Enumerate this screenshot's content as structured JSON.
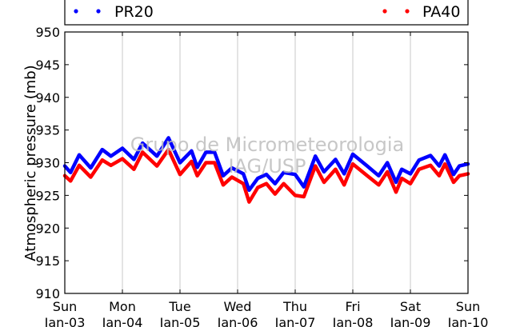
{
  "chart_data": {
    "type": "line",
    "ylabel": "Atmospheric pressure (mb)",
    "ylim": [
      910,
      950
    ],
    "yticks": [
      910,
      915,
      920,
      925,
      930,
      935,
      940,
      945,
      950
    ],
    "x_dates": [
      "Jan-03",
      "Jan-04",
      "Jan-05",
      "Jan-06",
      "Jan-07",
      "Jan-08",
      "Jan-09",
      "Jan-10"
    ],
    "x_labels_top": [
      "Sun",
      "Mon",
      "Tue",
      "Wed",
      "Thu",
      "Fri",
      "Sat",
      "Sun"
    ],
    "x_labels_bottom": [
      "Jan-03",
      "Jan-04",
      "Jan-05",
      "Jan-06",
      "Jan-07",
      "Jan-08",
      "Jan-09",
      "Jan-10"
    ],
    "grid": "vertical",
    "legend_placement": "top",
    "watermark": [
      "Grupo de Micrometeorologia",
      "IAG/USP"
    ],
    "series": [
      {
        "name": "PR20",
        "color": "#0000ff",
        "x": [
          0,
          0.1,
          0.25,
          0.45,
          0.65,
          0.8,
          1.0,
          1.2,
          1.35,
          1.6,
          1.8,
          2.0,
          2.2,
          2.3,
          2.45,
          2.6,
          2.75,
          2.9,
          3.1,
          3.2,
          3.35,
          3.5,
          3.65,
          3.8,
          4.0,
          4.15,
          4.35,
          4.5,
          4.7,
          4.85,
          5.0,
          5.25,
          5.45,
          5.6,
          5.75,
          5.85,
          6.0,
          6.15,
          6.35,
          6.5,
          6.6,
          6.75,
          6.85,
          7.0
        ],
        "y": [
          929.5,
          928.5,
          931.2,
          929.2,
          932.0,
          931.0,
          932.2,
          930.5,
          933.0,
          931.0,
          933.8,
          930.0,
          931.8,
          929.3,
          931.6,
          931.6,
          928.0,
          929.2,
          928.3,
          925.8,
          927.6,
          928.2,
          926.8,
          928.5,
          928.2,
          926.3,
          931.0,
          928.6,
          930.5,
          928.3,
          931.3,
          929.5,
          928.0,
          930.0,
          927.0,
          929.0,
          928.3,
          930.4,
          931.1,
          929.5,
          931.2,
          928.2,
          929.5,
          929.8
        ]
      },
      {
        "name": "PA40",
        "color": "#ff0000",
        "x": [
          0,
          0.1,
          0.25,
          0.45,
          0.65,
          0.8,
          1.0,
          1.2,
          1.35,
          1.6,
          1.8,
          2.0,
          2.2,
          2.3,
          2.45,
          2.6,
          2.75,
          2.9,
          3.1,
          3.2,
          3.35,
          3.5,
          3.65,
          3.8,
          4.0,
          4.15,
          4.35,
          4.5,
          4.7,
          4.85,
          5.0,
          5.25,
          5.45,
          5.6,
          5.75,
          5.85,
          6.0,
          6.15,
          6.35,
          6.5,
          6.6,
          6.75,
          6.85,
          7.0
        ],
        "y": [
          928.0,
          927.2,
          929.6,
          927.8,
          930.4,
          929.6,
          930.6,
          929.0,
          931.6,
          929.5,
          932.0,
          928.2,
          930.2,
          928.0,
          930.0,
          930.0,
          926.6,
          927.8,
          926.8,
          924.0,
          926.2,
          926.8,
          925.2,
          926.8,
          925.0,
          924.8,
          929.5,
          927.0,
          929.0,
          926.6,
          929.8,
          928.0,
          926.6,
          928.6,
          925.5,
          927.6,
          926.8,
          929.0,
          929.6,
          928.0,
          929.8,
          927.0,
          928.0,
          928.3
        ]
      }
    ]
  }
}
